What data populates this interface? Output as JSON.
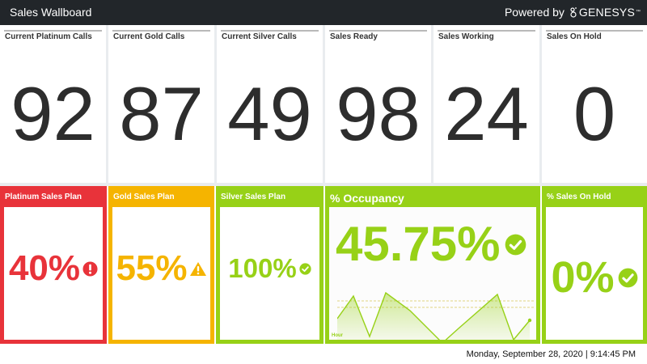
{
  "header": {
    "title": "Sales Wallboard",
    "powered_by": "Powered by",
    "brand": "GENESYS",
    "brand_tm": "™"
  },
  "stats": [
    {
      "label": "Current Platinum Calls",
      "value": "92"
    },
    {
      "label": "Current Gold Calls",
      "value": "87"
    },
    {
      "label": "Current Silver Calls",
      "value": "49"
    },
    {
      "label": "Sales Ready",
      "value": "98"
    },
    {
      "label": "Sales Working",
      "value": "24"
    },
    {
      "label": "Sales On Hold",
      "value": "0"
    }
  ],
  "kpis": {
    "platinum": {
      "label": "Platinum Sales Plan",
      "value": "40%",
      "status": "alert",
      "icon": "exclamation-circle-icon",
      "color": "#e8333a"
    },
    "gold": {
      "label": "Gold Sales Plan",
      "value": "55%",
      "status": "warning",
      "icon": "warning-triangle-icon",
      "color": "#f5b400"
    },
    "silver": {
      "label": "Silver Sales Plan",
      "value": "100%",
      "status": "ok",
      "icon": "check-circle-icon",
      "color": "#97d117"
    },
    "occupancy": {
      "label": "% Occupancy",
      "value": "45.75%",
      "status": "ok",
      "icon": "check-circle-icon",
      "color": "#97d117",
      "axis_label": "Hour"
    },
    "on_hold": {
      "label": "% Sales On Hold",
      "value": "0%",
      "status": "ok",
      "icon": "check-circle-icon",
      "color": "#97d117"
    }
  },
  "footer": {
    "timestamp": "Monday, September 28, 2020 | 9:14:45 PM"
  }
}
